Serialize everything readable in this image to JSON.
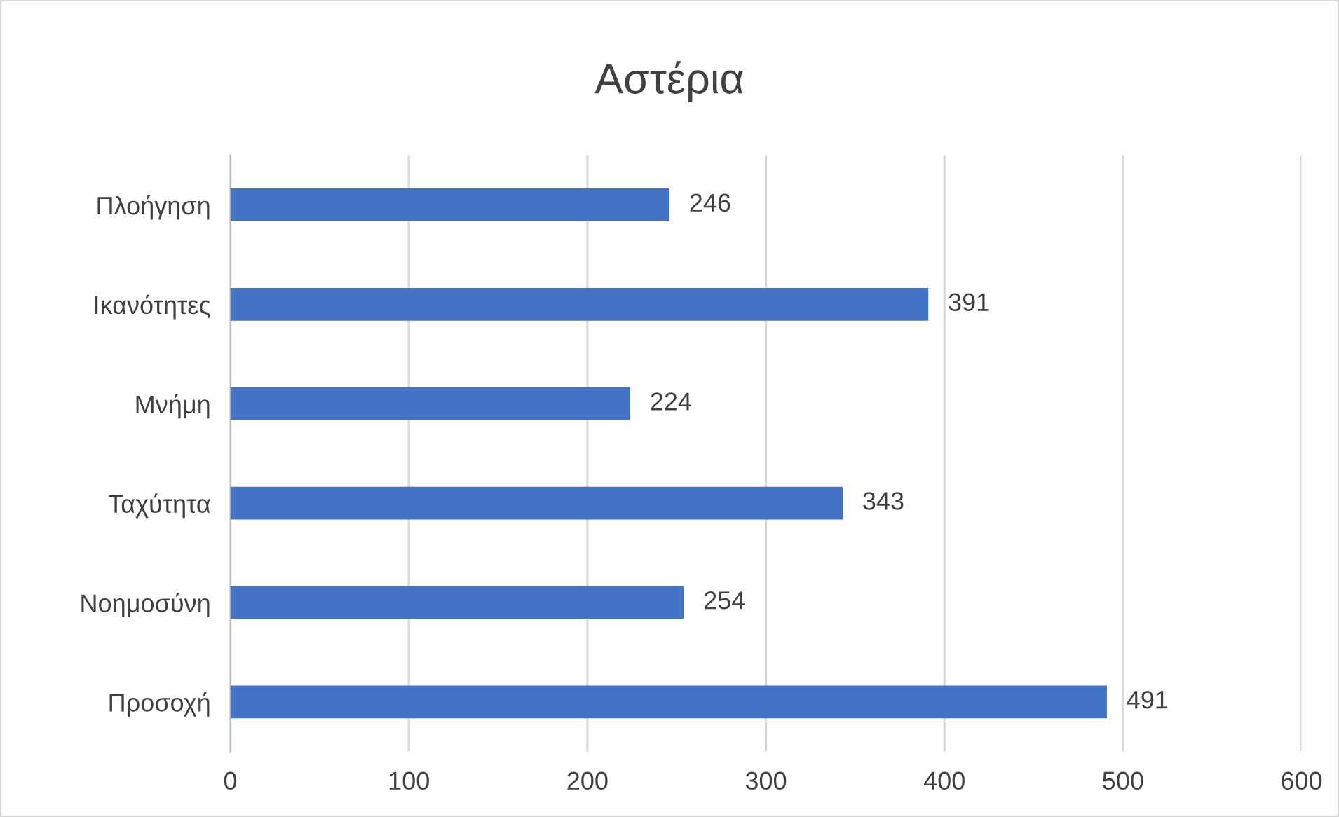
{
  "chart_data": {
    "type": "bar",
    "orientation": "horizontal",
    "title": "Αστέρια",
    "categories": [
      "Πλοήγηση",
      "Ικανότητες",
      "Μνήμη",
      "Ταχύτητα",
      "Νοημοσύνη",
      "Προσοχή"
    ],
    "values": [
      246,
      391,
      224,
      343,
      254,
      491
    ],
    "color": "#4472c4",
    "xlim": [
      0,
      600
    ],
    "xticks": [
      0,
      100,
      200,
      300,
      400,
      500,
      600
    ],
    "grid": "x",
    "data_labels": true
  }
}
